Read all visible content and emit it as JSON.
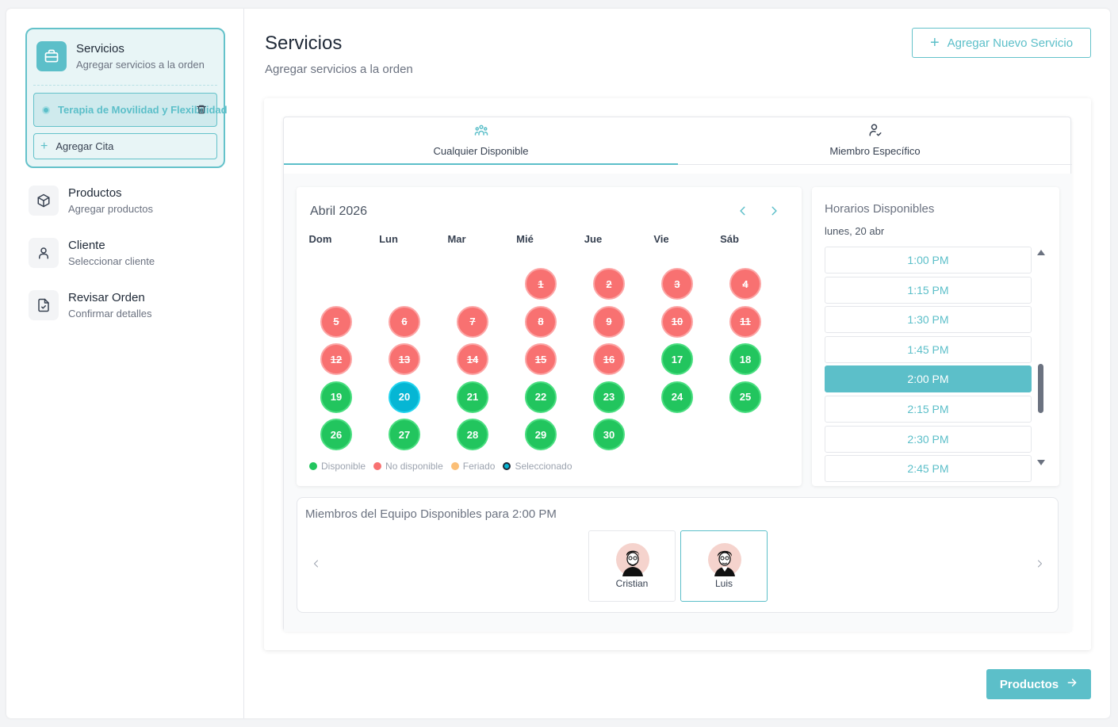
{
  "sidebar": {
    "steps": [
      {
        "title": "Servicios",
        "subtitle": "Agregar servicios a la orden",
        "icon": "briefcase-icon"
      },
      {
        "title": "Productos",
        "subtitle": "Agregar productos",
        "icon": "box-icon"
      },
      {
        "title": "Cliente",
        "subtitle": "Seleccionar cliente",
        "icon": "user-icon"
      },
      {
        "title": "Revisar Orden",
        "subtitle": "Confirmar detalles",
        "icon": "file-check-icon"
      }
    ],
    "selected_service": "Terapia de Movilidad y Flexibilidad",
    "add_appointment": "Agregar Cita"
  },
  "header": {
    "title": "Servicios",
    "subtitle": "Agregar servicios a la orden",
    "add_button": "Agregar Nuevo Servicio"
  },
  "tabs": [
    {
      "label": "Cualquier Disponible",
      "icon": "users-icon",
      "active": true
    },
    {
      "label": "Miembro Específico",
      "icon": "user-check-icon",
      "active": false
    }
  ],
  "calendar": {
    "month": "Abril 2026",
    "weekdays": [
      "Dom",
      "Lun",
      "Mar",
      "Mié",
      "Jue",
      "Vie",
      "Sáb"
    ],
    "first_weekday_index": 3,
    "days": [
      {
        "d": "1",
        "s": "na"
      },
      {
        "d": "2",
        "s": "na"
      },
      {
        "d": "3",
        "s": "na"
      },
      {
        "d": "4",
        "s": "na"
      },
      {
        "d": "5",
        "s": "na"
      },
      {
        "d": "6",
        "s": "na"
      },
      {
        "d": "7",
        "s": "na"
      },
      {
        "d": "8",
        "s": "na"
      },
      {
        "d": "9",
        "s": "na"
      },
      {
        "d": "10",
        "s": "na"
      },
      {
        "d": "11",
        "s": "na"
      },
      {
        "d": "12",
        "s": "na"
      },
      {
        "d": "13",
        "s": "na"
      },
      {
        "d": "14",
        "s": "na"
      },
      {
        "d": "15",
        "s": "na"
      },
      {
        "d": "16",
        "s": "na"
      },
      {
        "d": "17",
        "s": "av"
      },
      {
        "d": "18",
        "s": "av"
      },
      {
        "d": "19",
        "s": "av"
      },
      {
        "d": "20",
        "s": "sel"
      },
      {
        "d": "21",
        "s": "av"
      },
      {
        "d": "22",
        "s": "av"
      },
      {
        "d": "23",
        "s": "av"
      },
      {
        "d": "24",
        "s": "av"
      },
      {
        "d": "25",
        "s": "av"
      },
      {
        "d": "26",
        "s": "av"
      },
      {
        "d": "27",
        "s": "av"
      },
      {
        "d": "28",
        "s": "av"
      },
      {
        "d": "29",
        "s": "av"
      },
      {
        "d": "30",
        "s": "av"
      }
    ],
    "legend": [
      {
        "label": "Disponible",
        "color": "#22c55e"
      },
      {
        "label": "No disponible",
        "color": "#f87171"
      },
      {
        "label": "Feriado",
        "color": "#fbbf77"
      },
      {
        "label": "Seleccionado",
        "color": "#06b6d4"
      }
    ]
  },
  "times": {
    "title": "Horarios Disponibles",
    "date": "lunes, 20 abr",
    "slots": [
      "1:00 PM",
      "1:15 PM",
      "1:30 PM",
      "1:45 PM",
      "2:00 PM",
      "2:15 PM",
      "2:30 PM",
      "2:45 PM"
    ],
    "selected": "2:00 PM"
  },
  "team": {
    "title": "Miembros del Equipo Disponibles para 2:00 PM",
    "members": [
      {
        "name": "Cristian",
        "selected": false
      },
      {
        "name": "Luis",
        "selected": true
      }
    ]
  },
  "footer": {
    "next_button": "Productos"
  },
  "colors": {
    "accent": "#5cbfc9",
    "available": "#22c55e",
    "unavailable": "#f87171",
    "selected": "#06b6d4"
  }
}
